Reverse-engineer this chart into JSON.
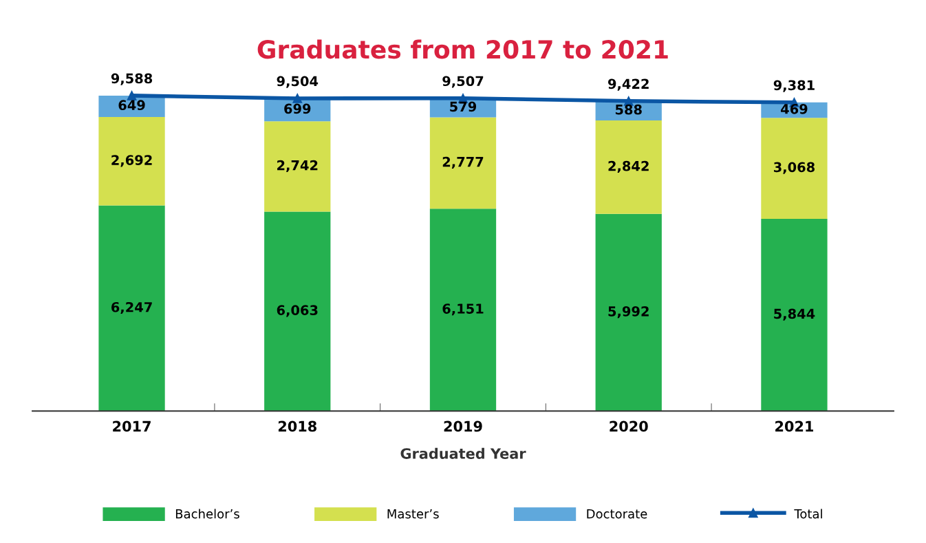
{
  "chart_data": {
    "type": "bar",
    "title": "Graduates from 2017 to 2021",
    "xlabel": "Graduated Year",
    "categories": [
      "2017",
      "2018",
      "2019",
      "2020",
      "2021"
    ],
    "stacked": true,
    "legend": "bottom",
    "marker": "triangle",
    "line_style": "solid",
    "tick_labels": "x",
    "series": [
      {
        "name": "Bachelor’s",
        "color": "#25b150",
        "values": [
          6247,
          6063,
          6151,
          5992,
          5844
        ],
        "value_labels": [
          "6,247",
          "6,063",
          "6,151",
          "5,992",
          "5,844"
        ]
      },
      {
        "name": "Master’s",
        "color": "#d4e04f",
        "values": [
          2692,
          2742,
          2777,
          2842,
          3068
        ],
        "value_labels": [
          "2,692",
          "2,742",
          "2,777",
          "2,842",
          "3,068"
        ]
      },
      {
        "name": "Doctorate",
        "color": "#5fa8dc",
        "values": [
          649,
          699,
          579,
          588,
          469
        ],
        "value_labels": [
          "649",
          "699",
          "579",
          "588",
          "469"
        ]
      },
      {
        "name": "Total",
        "type": "line",
        "color": "#0b56a4",
        "values": [
          9588,
          9504,
          9507,
          9422,
          9381
        ],
        "value_labels": [
          "9,588",
          "9,504",
          "9,507",
          "9,422",
          "9,381"
        ]
      }
    ]
  }
}
